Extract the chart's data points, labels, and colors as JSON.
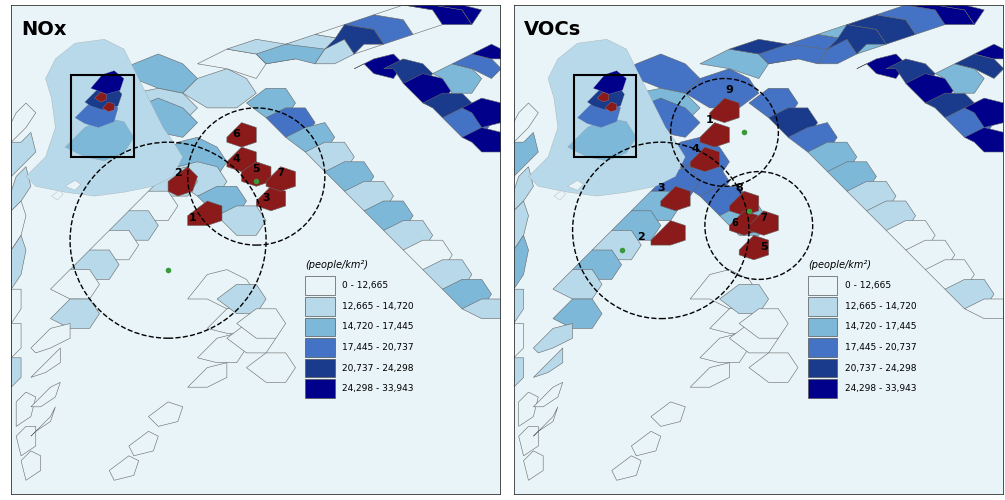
{
  "legend_colors": [
    "#e8f4f8",
    "#b8d9ea",
    "#7db8d9",
    "#4472c4",
    "#1a3a8c",
    "#00008b"
  ],
  "legend_labels": [
    "0 - 12,665",
    "12,665 - 14,720",
    "14,720 - 17,445",
    "17,445 - 20,737",
    "20,737 - 24,298",
    "24,298 - 33,943"
  ],
  "legend_title": "(people/km²)",
  "high_emission_color": "#8b1a1a",
  "background_color": "white",
  "nox_title": "NOx",
  "voc_title": "VOCs",
  "green_dot_color": "#3a9a3a",
  "border_lw": 0.4,
  "map_edge_color": "#666666",
  "fig_bg": "#f5f5f5"
}
